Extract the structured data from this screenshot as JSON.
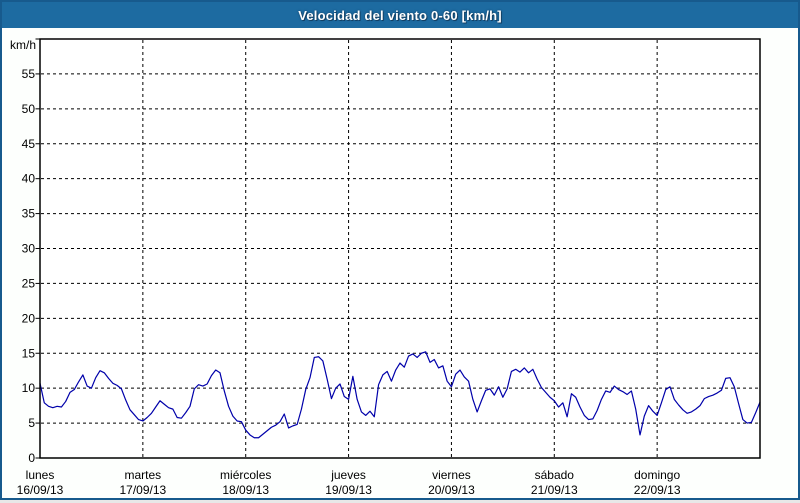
{
  "window": {
    "title": "Velocidad del viento 0-60 [km/h]"
  },
  "colors": {
    "frame": "#175a8d",
    "titlebar_bg": "#1d6ba1",
    "title_text": "#ffffff",
    "content_bg": "#fdfffd",
    "plot_bg": "#ffffff",
    "grid_line": "#000000",
    "axis_line": "#000000",
    "label_text": "#000000",
    "series_line": "#0000aa"
  },
  "chart_data": {
    "type": "line",
    "title": "Velocidad del viento 0-60 [km/h]",
    "unit_label": "km/h",
    "ylabel": "km/h",
    "ylim": [
      0,
      60
    ],
    "ytick_step": 5,
    "ytick_labels": [
      "0",
      "5",
      "10",
      "15",
      "20",
      "25",
      "30",
      "35",
      "40",
      "45",
      "50",
      "55"
    ],
    "grid": "dashed",
    "legend": "none",
    "x_days": [
      {
        "name": "lunes",
        "date": "16/09/13"
      },
      {
        "name": "martes",
        "date": "17/09/13"
      },
      {
        "name": "miércoles",
        "date": "18/09/13"
      },
      {
        "name": "jueves",
        "date": "19/09/13"
      },
      {
        "name": "viernes",
        "date": "20/09/13"
      },
      {
        "name": "sábado",
        "date": "21/09/13"
      },
      {
        "name": "domingo",
        "date": "22/09/13"
      }
    ],
    "points_per_day": 24,
    "series": [
      {
        "name": "Velocidad del viento",
        "color": "#0000aa",
        "values": [
          10.7,
          7.9,
          7.4,
          7.2,
          7.4,
          7.3,
          8.1,
          9.4,
          9.8,
          10.9,
          11.9,
          10.3,
          10.0,
          11.5,
          12.5,
          12.2,
          11.4,
          10.7,
          10.4,
          9.9,
          8.3,
          6.9,
          6.2,
          5.5,
          5.3,
          5.8,
          6.4,
          7.3,
          8.2,
          7.7,
          7.2,
          7.0,
          5.8,
          5.7,
          6.5,
          7.4,
          9.9,
          10.5,
          10.3,
          10.6,
          11.8,
          12.6,
          12.2,
          9.6,
          7.4,
          6.0,
          5.3,
          5.2,
          4.0,
          3.3,
          2.9,
          2.9,
          3.4,
          3.9,
          4.4,
          4.7,
          5.2,
          6.3,
          4.3,
          4.6,
          4.8,
          7.0,
          9.8,
          11.5,
          14.4,
          14.5,
          13.9,
          11.3,
          8.5,
          10.0,
          10.6,
          8.8,
          8.4,
          11.7,
          8.4,
          6.6,
          6.1,
          6.7,
          5.9,
          10.5,
          11.9,
          12.4,
          11.0,
          12.6,
          13.6,
          13.0,
          14.6,
          14.9,
          14.4,
          15.0,
          15.2,
          13.7,
          14.1,
          12.9,
          13.2,
          11.0,
          10.2,
          12.0,
          12.6,
          11.6,
          11.0,
          8.4,
          6.6,
          8.2,
          9.7,
          9.9,
          9.0,
          10.2,
          8.7,
          9.9,
          12.4,
          12.7,
          12.3,
          12.9,
          12.2,
          12.7,
          11.3,
          10.1,
          9.4,
          8.7,
          8.2,
          7.3,
          7.9,
          5.9,
          9.2,
          8.7,
          7.3,
          6.1,
          5.5,
          5.6,
          6.8,
          8.4,
          9.6,
          9.4,
          10.3,
          9.8,
          9.5,
          9.1,
          9.6,
          7.0,
          3.3,
          6.0,
          7.5,
          6.7,
          6.1,
          7.9,
          9.8,
          10.2,
          8.4,
          7.6,
          6.9,
          6.4,
          6.6,
          7.0,
          7.5,
          8.5,
          8.8,
          9.0,
          9.3,
          9.7,
          11.4,
          11.5,
          10.2,
          7.8,
          5.5,
          5.0,
          5.1,
          6.5,
          8.0
        ]
      }
    ]
  }
}
